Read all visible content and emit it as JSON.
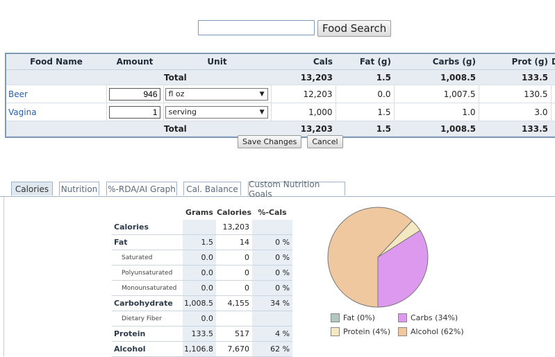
{
  "search": {
    "button_label": "Food Search",
    "value": ""
  },
  "food_table": {
    "headers": [
      "Food Name",
      "Amount",
      "Unit",
      "Cals",
      "Fat (g)",
      "Carbs (g)",
      "Prot (g)"
    ],
    "total_label": "Total",
    "totals": {
      "cals": "13,203",
      "fat": "1.5",
      "carbs": "1,008.5",
      "prot": "133.5"
    },
    "rows": [
      {
        "name": "Beer",
        "amount": "946",
        "unit": "fl oz",
        "cals": "12,203",
        "fat": "0.0",
        "carbs": "1,007.5",
        "prot": "130.5"
      },
      {
        "name": "Vagina",
        "amount": "1",
        "unit": "serving",
        "cals": "1,000",
        "fat": "1.5",
        "carbs": "1.0",
        "prot": "3.0"
      }
    ]
  },
  "actions": {
    "save_label": "Save Changes",
    "cancel_label": "Cancel"
  },
  "tabs": [
    "Calories",
    "Nutrition",
    "%-RDA/AI Graph",
    "Cal. Balance",
    "Custom Nutrition Goals"
  ],
  "nutrition": {
    "headers": [
      "Grams",
      "Calories",
      "%-Cals"
    ],
    "rows": [
      {
        "label": "Calories",
        "grams": "",
        "calories": "13,203",
        "pct": "",
        "sub": false
      },
      {
        "label": "Fat",
        "grams": "1.5",
        "calories": "14",
        "pct": "0 %",
        "sub": false
      },
      {
        "label": "Saturated",
        "grams": "0.0",
        "calories": "0",
        "pct": "0 %",
        "sub": true
      },
      {
        "label": "Polyunsaturated",
        "grams": "0.0",
        "calories": "0",
        "pct": "0 %",
        "sub": true
      },
      {
        "label": "Monounsaturated",
        "grams": "0.0",
        "calories": "0",
        "pct": "0 %",
        "sub": true
      },
      {
        "label": "Carbohydrate",
        "grams": "1,008.5",
        "calories": "4,155",
        "pct": "34 %",
        "sub": false
      },
      {
        "label": "Dietary Fiber",
        "grams": "0.0",
        "calories": "",
        "pct": "",
        "sub": true
      },
      {
        "label": "Protein",
        "grams": "133.5",
        "calories": "517",
        "pct": "4 %",
        "sub": false
      },
      {
        "label": "Alcohol",
        "grams": "1,106.8",
        "calories": "7,670",
        "pct": "62 %",
        "sub": false
      }
    ]
  },
  "pie": {
    "slices": [
      {
        "name": "Fat",
        "pct": 0,
        "color": "#b0c8c0"
      },
      {
        "name": "Carbs",
        "pct": 34,
        "color": "#dd99ee"
      },
      {
        "name": "Protein",
        "pct": 4,
        "color": "#f4e8c0"
      },
      {
        "name": "Alcohol",
        "pct": 62,
        "color": "#f0c8a0"
      }
    ],
    "legend": [
      "Fat  (0%)",
      "Carbs  (34%)",
      "Protein  (4%)",
      "Alcohol  (62%)"
    ]
  }
}
